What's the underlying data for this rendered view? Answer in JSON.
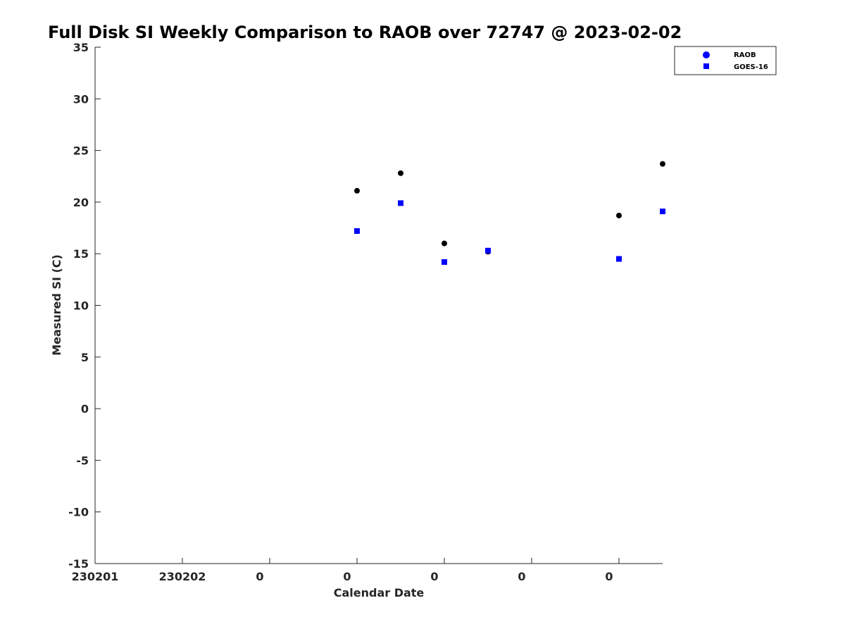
{
  "chart_data": {
    "type": "scatter",
    "title": "Full Disk SI Weekly Comparison to RAOB over 72747 @ 2023-02-02",
    "xlabel": "Calendar Date",
    "ylabel": "Measured SI (C)",
    "ylim": [
      -15,
      35
    ],
    "yticks": [
      -15,
      -10,
      -5,
      0,
      5,
      10,
      15,
      20,
      25,
      30,
      35
    ],
    "xlim": [
      0,
      6.5
    ],
    "xticks": [
      {
        "pos": 0,
        "label": "230201"
      },
      {
        "pos": 1,
        "label": "230202"
      },
      {
        "pos": 2,
        "label": "0"
      },
      {
        "pos": 3,
        "label": "0"
      },
      {
        "pos": 4,
        "label": "0"
      },
      {
        "pos": 5,
        "label": "0"
      },
      {
        "pos": 6,
        "label": "0"
      }
    ],
    "grid": false,
    "legend_position": "top-right",
    "series": [
      {
        "name": "RAOB",
        "marker": "circle",
        "color": "#000000",
        "legend_color": "#0000ff",
        "x": [
          3.0,
          3.5,
          4.0,
          4.5,
          6.0,
          6.5
        ],
        "y": [
          21.1,
          22.8,
          16.0,
          15.2,
          18.7,
          23.7
        ]
      },
      {
        "name": "GOES-16",
        "marker": "square",
        "color": "#0000ff",
        "legend_color": "#0000ff",
        "x": [
          3.0,
          3.5,
          4.0,
          4.5,
          6.0,
          6.5
        ],
        "y": [
          17.2,
          19.9,
          14.2,
          15.3,
          14.5,
          19.1
        ]
      }
    ]
  }
}
